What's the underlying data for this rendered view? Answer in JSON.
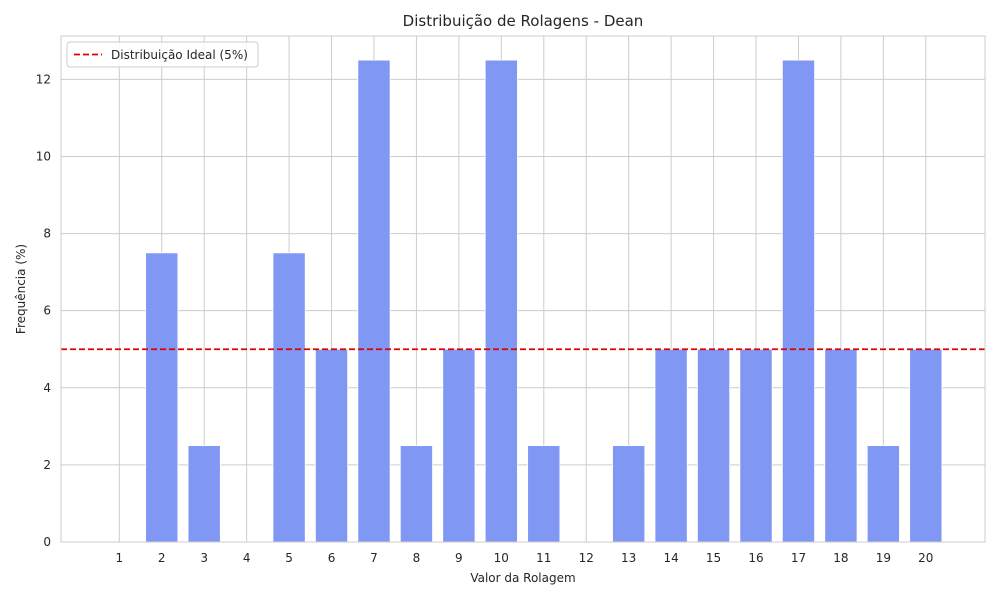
{
  "chart_data": {
    "type": "bar",
    "title": "Distribuição de Rolagens - Dean",
    "xlabel": "Valor da Rolagem",
    "ylabel": "Frequência (%)",
    "categories": [
      "1",
      "2",
      "3",
      "4",
      "5",
      "6",
      "7",
      "8",
      "9",
      "10",
      "11",
      "12",
      "13",
      "14",
      "15",
      "16",
      "17",
      "18",
      "19",
      "20"
    ],
    "values": [
      0,
      7.5,
      2.5,
      0,
      7.5,
      5,
      12.5,
      2.5,
      5,
      12.5,
      2.5,
      0,
      2.5,
      5,
      5,
      5,
      12.5,
      5,
      2.5,
      5
    ],
    "ylim": [
      0,
      13.125
    ],
    "yticks": [
      "0",
      "2",
      "4",
      "6",
      "8",
      "10",
      "12"
    ],
    "reference_line": {
      "value": 5,
      "label": "Distribuição Ideal (5%)",
      "style": "dashed",
      "color": "#e00000"
    },
    "legend_position": "top-left",
    "grid": true,
    "bar_color": "#8098f4"
  }
}
